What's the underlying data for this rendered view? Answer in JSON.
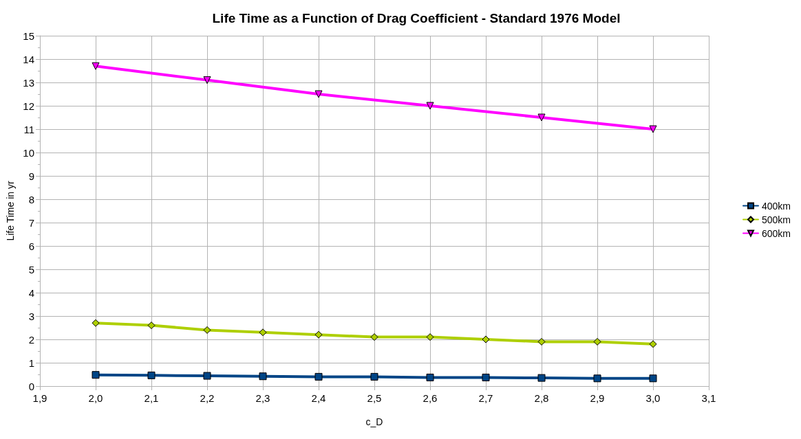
{
  "chart_data": {
    "type": "line",
    "title": "Life Time as a Function of Drag Coefficient - Standard 1976 Model",
    "xlabel": "c_D",
    "ylabel": "Life Time in yr",
    "xlim": [
      1.9,
      3.1
    ],
    "xticks": [
      {
        "value": 1.9,
        "label": "1,9"
      },
      {
        "value": 2.0,
        "label": "2,0"
      },
      {
        "value": 2.1,
        "label": "2,1"
      },
      {
        "value": 2.2,
        "label": "2,2"
      },
      {
        "value": 2.3,
        "label": "2,3"
      },
      {
        "value": 2.4,
        "label": "2,4"
      },
      {
        "value": 2.5,
        "label": "2,5"
      },
      {
        "value": 2.6,
        "label": "2,6"
      },
      {
        "value": 2.7,
        "label": "2,7"
      },
      {
        "value": 2.8,
        "label": "2,8"
      },
      {
        "value": 2.9,
        "label": "2,9"
      },
      {
        "value": 3.0,
        "label": "3,0"
      },
      {
        "value": 3.1,
        "label": "3,1"
      }
    ],
    "ylim": [
      0,
      15
    ],
    "yticks": [
      0,
      1,
      2,
      3,
      4,
      5,
      6,
      7,
      8,
      9,
      10,
      11,
      12,
      13,
      14,
      15
    ],
    "grid": true,
    "legend": "right",
    "line_style": "solid",
    "series": [
      {
        "name": "400km",
        "color": "#004586",
        "marker": "square",
        "x": [
          2.0,
          2.1,
          2.2,
          2.3,
          2.4,
          2.5,
          2.6,
          2.7,
          2.8,
          2.9,
          3.0
        ],
        "values": [
          0.48,
          0.46,
          0.44,
          0.42,
          0.4,
          0.4,
          0.37,
          0.37,
          0.35,
          0.33,
          0.33
        ]
      },
      {
        "name": "500km",
        "color": "#aecf00",
        "marker": "diamond",
        "x": [
          2.0,
          2.1,
          2.2,
          2.3,
          2.4,
          2.5,
          2.6,
          2.7,
          2.8,
          2.9,
          3.0
        ],
        "values": [
          2.7,
          2.6,
          2.4,
          2.3,
          2.2,
          2.1,
          2.1,
          2.0,
          1.9,
          1.9,
          1.8
        ]
      },
      {
        "name": "600km",
        "color": "#ff00ff",
        "marker": "triangle-down",
        "x": [
          2.0,
          2.2,
          2.4,
          2.6,
          2.8,
          3.0
        ],
        "values": [
          13.7,
          13.1,
          12.5,
          12.0,
          11.5,
          11.0
        ]
      }
    ]
  }
}
